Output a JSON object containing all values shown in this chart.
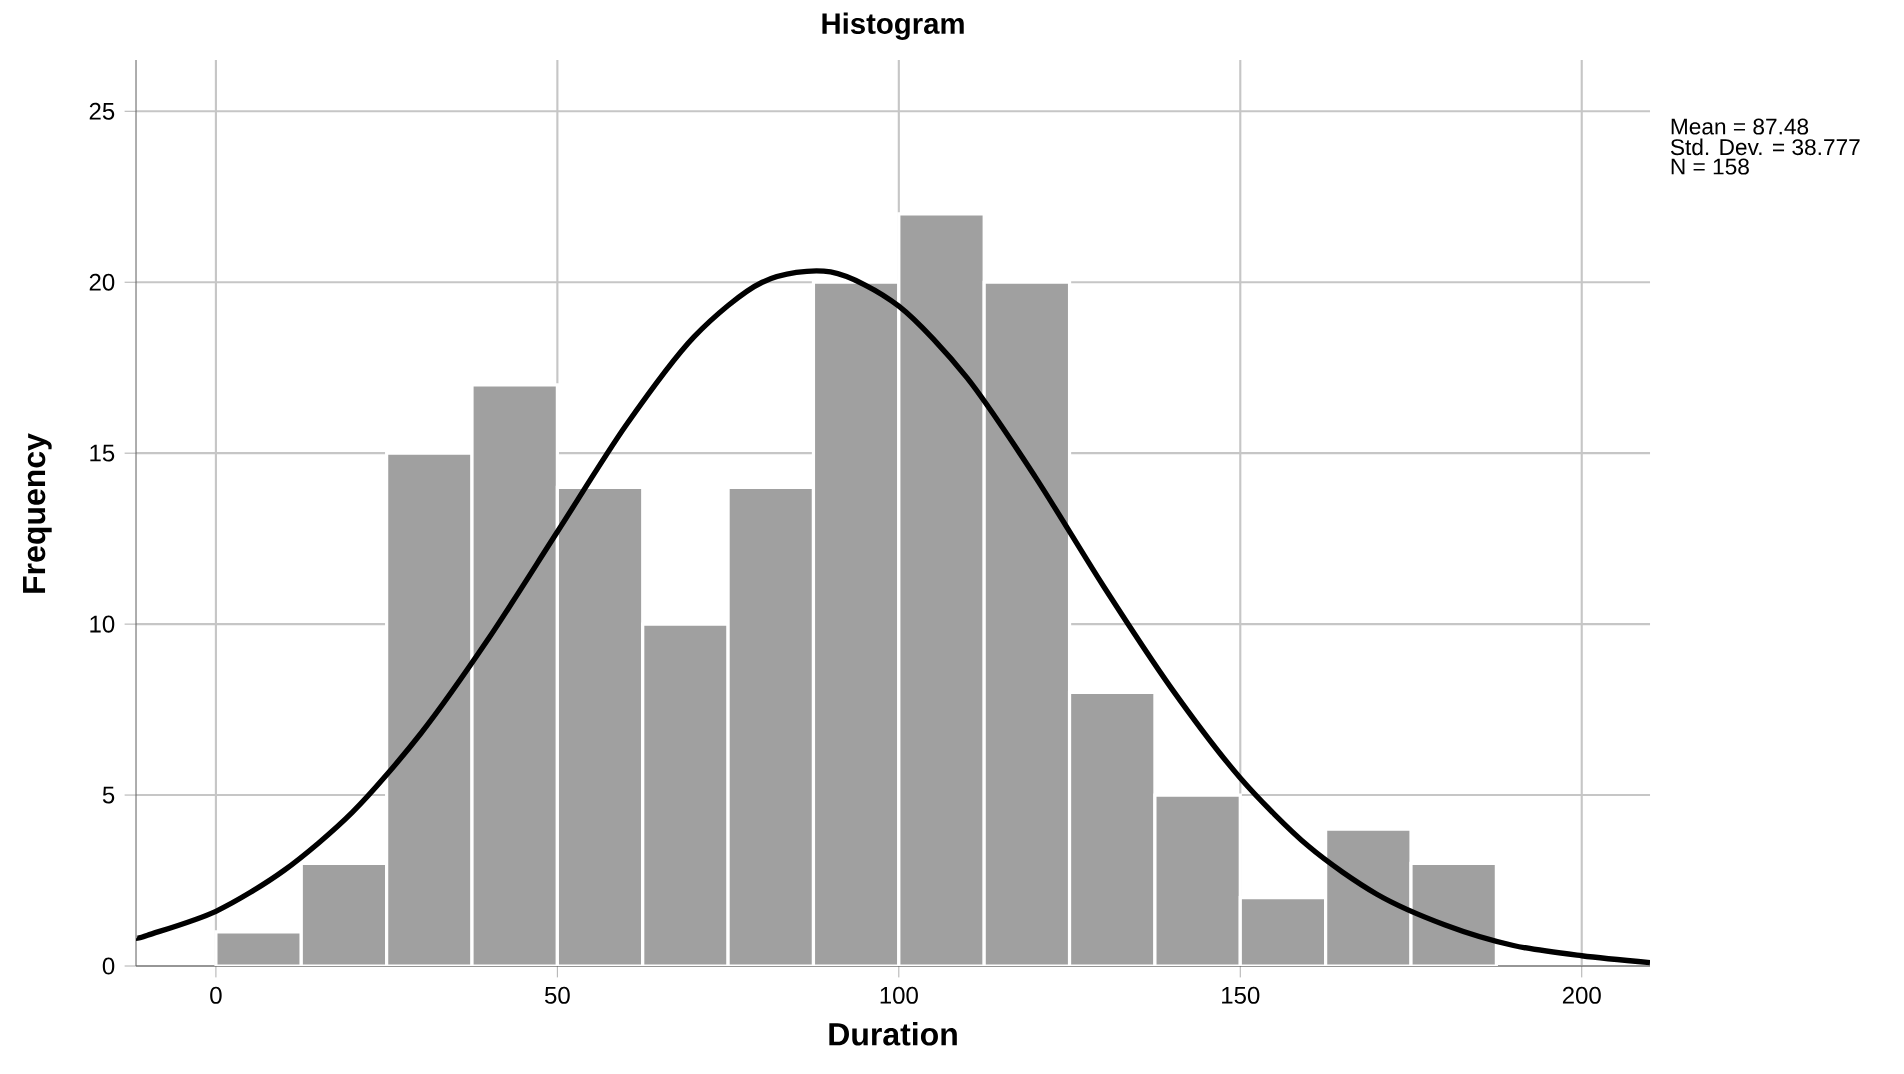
{
  "chart_data": {
    "type": "histogram",
    "title": "Histogram",
    "xlabel": "Duration",
    "ylabel": "Frequency",
    "bins": [
      0,
      12.5,
      25,
      37.5,
      50,
      62.5,
      75,
      87.5,
      100,
      112.5,
      125,
      137.5,
      150,
      162.5,
      175,
      187.5
    ],
    "values": [
      1,
      3,
      15,
      17,
      14,
      10,
      14,
      20,
      22,
      20,
      8,
      5,
      2,
      4,
      3
    ],
    "color": "#a0a0a0",
    "series": [
      {
        "type": "line",
        "color": "#000000",
        "x": [
          -11.7,
          -10,
          0,
          10,
          20,
          30,
          40,
          50,
          60,
          70,
          80,
          90,
          100,
          110,
          120,
          130,
          140,
          150,
          160,
          170,
          180,
          190,
          200,
          210
        ],
        "values": [
          0.8,
          0.9,
          1.6,
          2.8,
          4.5,
          6.8,
          9.6,
          12.7,
          15.8,
          18.4,
          20.0,
          20.3,
          19.3,
          17.2,
          14.3,
          11.1,
          8.1,
          5.5,
          3.5,
          2.1,
          1.2,
          0.6,
          0.3,
          0.1
        ]
      }
    ],
    "xlim": [
      -11.7,
      210
    ],
    "ylim": [
      0,
      26.5
    ],
    "xticks": [
      0,
      50,
      100,
      150,
      200
    ],
    "yticks": [
      0,
      5,
      10,
      15,
      20,
      25
    ],
    "grid": true,
    "annotations": [
      "Mean = 87.48",
      "Std. Dev. = 38.777",
      "N = 158"
    ]
  }
}
